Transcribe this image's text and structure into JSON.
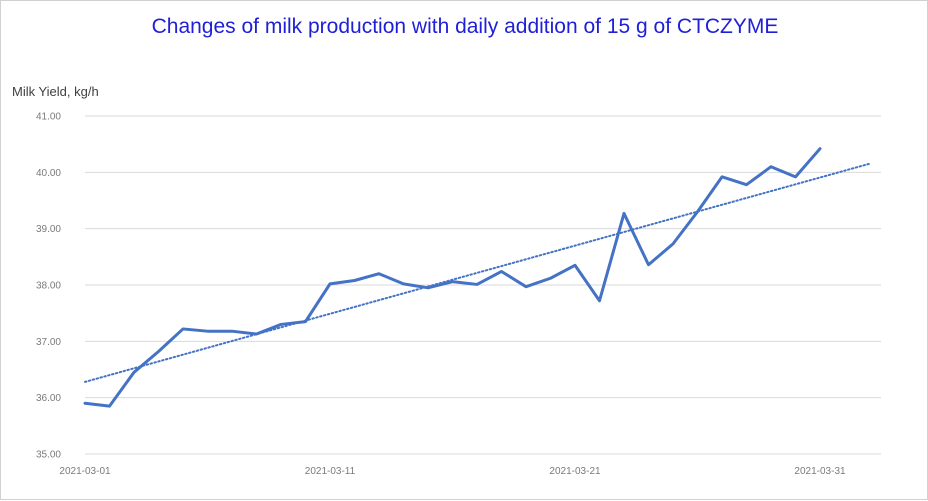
{
  "chart_data": {
    "type": "line",
    "title": "Changes of milk production with daily addition of 15 g of CTCZYME",
    "ylabel": "Milk Yield, kg/h",
    "xlabel": "",
    "ylim": [
      35,
      41
    ],
    "yticks": [
      "35.00",
      "36.00",
      "37.00",
      "38.00",
      "39.00",
      "40.00",
      "41.00"
    ],
    "xticks": [
      {
        "label": "2021-03-01",
        "day": 0
      },
      {
        "label": "2021-03-11",
        "day": 10
      },
      {
        "label": "2021-03-21",
        "day": 20
      },
      {
        "label": "2021-03-31",
        "day": 30
      }
    ],
    "grid": true,
    "legend": "none",
    "colors": {
      "series": "#4472c4",
      "trend": "#4472c4",
      "title": "#1f1fd8",
      "grid": "#d9d9d9"
    },
    "series": [
      {
        "x": [
          "2021-03-01",
          "2021-03-02",
          "2021-03-03",
          "2021-03-04",
          "2021-03-05",
          "2021-03-06",
          "2021-03-07",
          "2021-03-08",
          "2021-03-09",
          "2021-03-10",
          "2021-03-11",
          "2021-03-12",
          "2021-03-13",
          "2021-03-14",
          "2021-03-15",
          "2021-03-16",
          "2021-03-17",
          "2021-03-18",
          "2021-03-19",
          "2021-03-20",
          "2021-03-21",
          "2021-03-22",
          "2021-03-23",
          "2021-03-24",
          "2021-03-25",
          "2021-03-26",
          "2021-03-27",
          "2021-03-28",
          "2021-03-29",
          "2021-03-30",
          "2021-03-31"
        ],
        "values": [
          35.9,
          35.85,
          36.45,
          36.82,
          37.22,
          37.18,
          37.18,
          37.13,
          37.3,
          37.35,
          38.02,
          38.08,
          38.2,
          38.02,
          37.95,
          38.06,
          38.01,
          38.24,
          37.97,
          38.12,
          38.35,
          37.72,
          39.27,
          38.36,
          38.73,
          39.3,
          39.92,
          39.78,
          40.1,
          39.92,
          40.42
        ]
      }
    ],
    "trendline": {
      "type": "linear",
      "style": "dotted",
      "start": {
        "x": "2021-03-01",
        "y": 36.28
      },
      "end": {
        "x": "2021-04-02",
        "y": 40.15
      }
    }
  }
}
